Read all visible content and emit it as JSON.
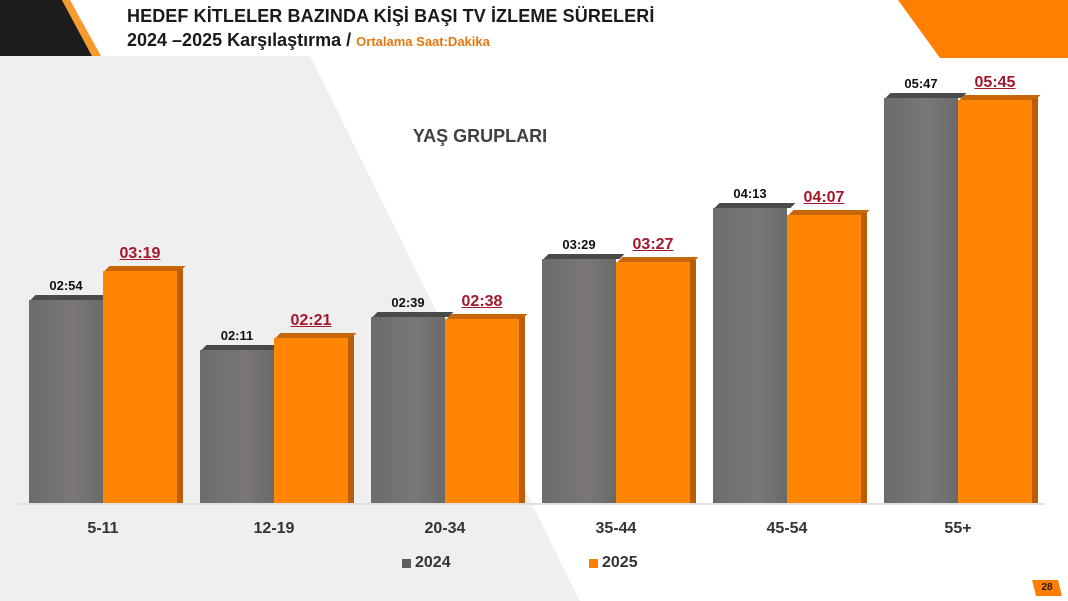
{
  "header": {
    "title_line1": "HEDEF KİTLELER BAZINDA KİŞİ BAŞI TV İZLEME SÜRELERİ",
    "title_line2": "2024 –2025 Karşılaştırma / ",
    "subtitle": "Ortalama Saat:Dakika"
  },
  "page_number": "28",
  "colors": {
    "series_2024": "#6e6e6e",
    "series_2025": "#ff8503",
    "label_2025": "#a3172a",
    "accent": "#ff8000"
  },
  "chart_data": {
    "type": "bar",
    "title": "YAŞ GRUPLARI",
    "xlabel": "",
    "ylabel": "Ortalama Saat:Dakika",
    "categories": [
      "5-11",
      "12-19",
      "20-34",
      "35-44",
      "45-54",
      "55+"
    ],
    "series": [
      {
        "name": "2024",
        "labels": [
          "02:54",
          "02:11",
          "02:39",
          "03:29",
          "04:13",
          "05:47"
        ],
        "values_minutes": [
          174,
          131,
          159,
          209,
          253,
          347
        ]
      },
      {
        "name": "2025",
        "labels": [
          "03:19",
          "02:21",
          "02:38",
          "03:27",
          "04:07",
          "05:45"
        ],
        "values_minutes": [
          199,
          141,
          158,
          207,
          247,
          345
        ]
      }
    ],
    "legend": [
      "2024",
      "2025"
    ],
    "legend_position": "bottom",
    "grid": false
  }
}
